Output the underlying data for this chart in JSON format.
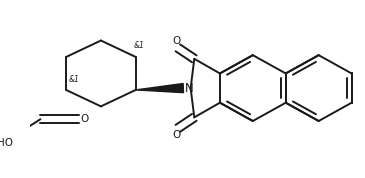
{
  "background_color": "#ffffff",
  "line_color": "#1a1a1a",
  "line_width": 1.4,
  "figsize": [
    3.65,
    1.78
  ],
  "dpi": 100,
  "label1_text": "&1",
  "label2_text": "&1",
  "N_text": "N",
  "HO_text": "HO",
  "O_text": "O"
}
